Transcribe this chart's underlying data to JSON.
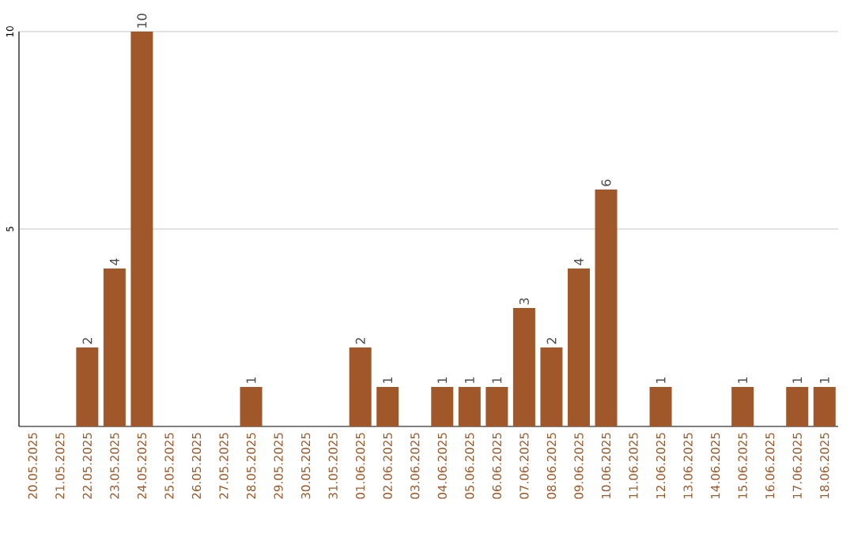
{
  "chart_data": {
    "type": "bar",
    "categories": [
      "20.05.2025",
      "21.05.2025",
      "22.05.2025",
      "23.05.2025",
      "24.05.2025",
      "25.05.2025",
      "26.05.2025",
      "27.05.2025",
      "28.05.2025",
      "29.05.2025",
      "30.05.2025",
      "31.05.2025",
      "01.06.2025",
      "02.06.2025",
      "03.06.2025",
      "04.06.2025",
      "05.06.2025",
      "06.06.2025",
      "07.06.2025",
      "08.06.2025",
      "09.06.2025",
      "10.06.2025",
      "11.06.2025",
      "12.06.2025",
      "13.06.2025",
      "14.06.2025",
      "15.06.2025",
      "16.06.2025",
      "17.06.2025",
      "18.06.2025"
    ],
    "values": [
      0,
      0,
      2,
      4,
      10,
      0,
      0,
      0,
      1,
      0,
      0,
      0,
      2,
      1,
      0,
      1,
      1,
      1,
      3,
      2,
      4,
      6,
      0,
      1,
      0,
      0,
      1,
      0,
      1,
      1
    ],
    "value_labels": [
      null,
      null,
      "2",
      "4",
      "10",
      null,
      null,
      null,
      "1",
      null,
      null,
      null,
      "2",
      "1",
      null,
      "1",
      "1",
      "1",
      "3",
      "2",
      "4",
      "6",
      null,
      "1",
      null,
      null,
      "1",
      null,
      "1",
      "1"
    ],
    "color": "#a0582a",
    "ylim": [
      0,
      10
    ],
    "yticks": [
      5,
      10
    ],
    "grid": "y"
  }
}
